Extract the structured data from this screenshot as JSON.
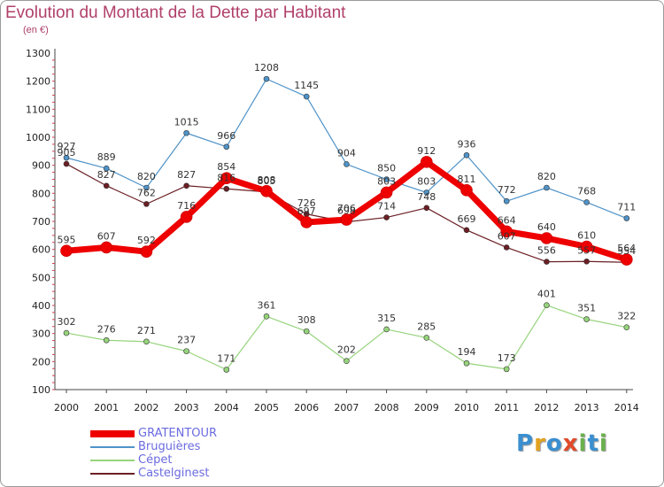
{
  "title": "Evolution du Montant de la Dette par Habitant",
  "subtitle": "(en €)",
  "logo": {
    "text": "Proxiti",
    "letters": [
      {
        "ch": "P",
        "color": "#3a8fd0"
      },
      {
        "ch": "r",
        "color": "#e2a21f"
      },
      {
        "ch": "o",
        "color": "#3a8fd0"
      },
      {
        "ch": "x",
        "color": "#e04a2a"
      },
      {
        "ch": "i",
        "color": "#6ab04c"
      },
      {
        "ch": "t",
        "color": "#3a8fd0"
      },
      {
        "ch": "i",
        "color": "#6ab04c"
      }
    ]
  },
  "chart_data": {
    "type": "line",
    "title": "Evolution du Montant de la Dette par Habitant",
    "subtitle": "(en €)",
    "ylim": [
      100,
      1300
    ],
    "yticks": [
      100,
      200,
      300,
      400,
      500,
      600,
      700,
      800,
      900,
      1000,
      1100,
      1200,
      1300
    ],
    "categories": [
      "2000",
      "2001",
      "2002",
      "2003",
      "2004",
      "2005",
      "2006",
      "2007",
      "2008",
      "2009",
      "2010",
      "2011",
      "2012",
      "2013",
      "2014"
    ],
    "grid": false,
    "legend_position": "bottom-left",
    "series": [
      {
        "name": "GRATENTOUR",
        "color": "#ee0000",
        "values": [
          595,
          607,
          592,
          716,
          854,
          808,
          697,
          706,
          803,
          912,
          811,
          664,
          640,
          610,
          564
        ]
      },
      {
        "name": "Bruguières",
        "color": "#4f93c8",
        "values": [
          927,
          889,
          820,
          1015,
          966,
          1208,
          1145,
          904,
          850,
          803,
          936,
          772,
          820,
          768,
          711
        ]
      },
      {
        "name": "Cépet",
        "color": "#96d47c",
        "values": [
          302,
          276,
          271,
          237,
          171,
          361,
          308,
          202,
          315,
          285,
          194,
          173,
          401,
          351,
          322
        ]
      },
      {
        "name": "Castelginest",
        "color": "#6b1f24",
        "values": [
          905,
          827,
          762,
          827,
          816,
          805,
          726,
          698,
          714,
          748,
          669,
          607,
          556,
          557,
          554
        ]
      }
    ]
  }
}
